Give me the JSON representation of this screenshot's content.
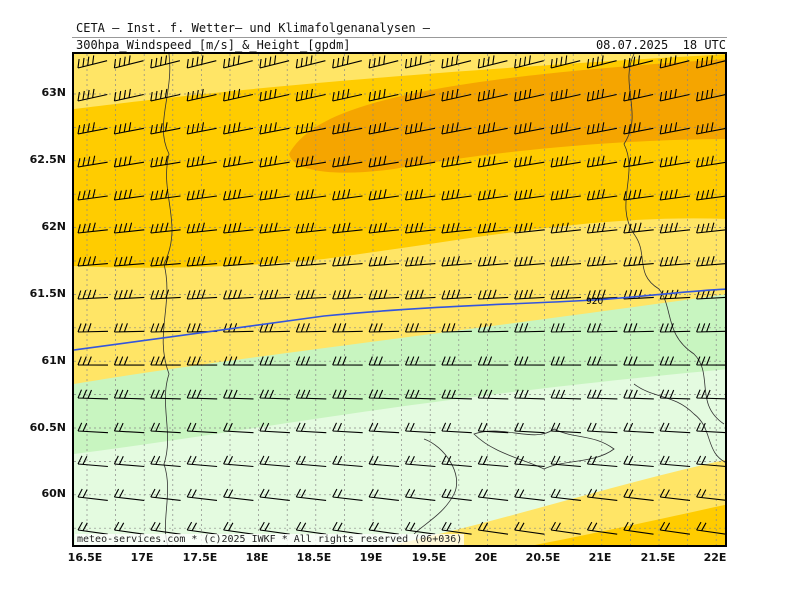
{
  "header": {
    "title": "CETA — Inst. f. Wetter— und Klimafolgenanalysen —",
    "subtitle": "300hpa_Windspeed_[m/s]_&_Height_[gpdm]",
    "datetime": "08.07.2025  18 UTC"
  },
  "map": {
    "lat_labels": [
      "63N",
      "62.5N",
      "62N",
      "61.5N",
      "61N",
      "60.5N",
      "60N"
    ],
    "lon_labels": [
      "16.5E",
      "17E",
      "17.5E",
      "18E",
      "18.5E",
      "19E",
      "19.5E",
      "20E",
      "20.5E",
      "21E",
      "21.5E",
      "22E"
    ],
    "contour_label": "920",
    "colors": {
      "very_strong": "#f5a500",
      "strong": "#ffcc00",
      "moderate": "#ffe566",
      "light_green": "#c8f5c0",
      "pale_green": "#e4fbe0",
      "contour": "#3355dd",
      "coast": "#333333",
      "barb": "#000000",
      "grid": "#888888"
    }
  },
  "footer": {
    "text": "meteo-services.com * (c)2025 IWKF * All rights reserved (06+036)"
  }
}
